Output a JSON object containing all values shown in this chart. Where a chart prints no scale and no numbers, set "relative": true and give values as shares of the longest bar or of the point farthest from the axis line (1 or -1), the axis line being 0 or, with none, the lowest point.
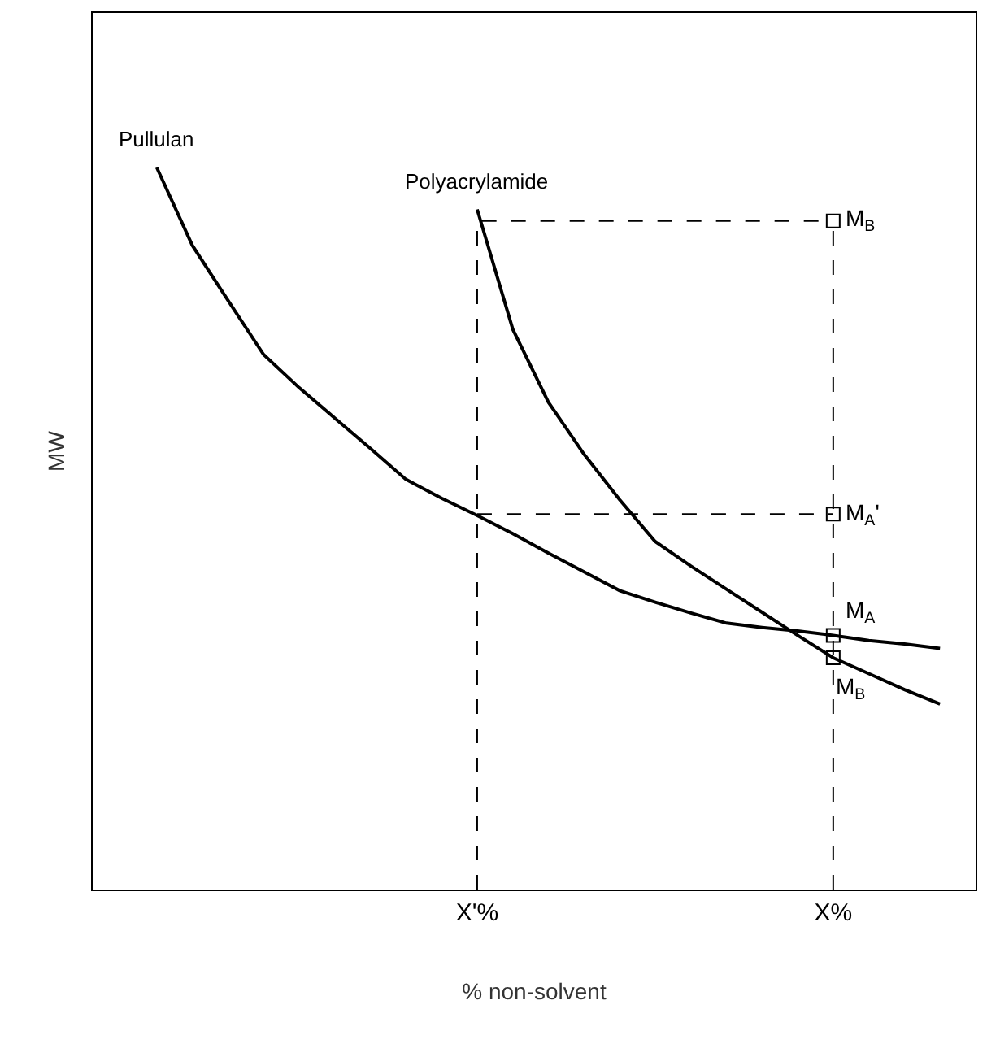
{
  "chart_data": {
    "type": "line",
    "relative": true,
    "xlabel": "% non-solvent",
    "ylabel": "MW",
    "categories": [
      null,
      null,
      null,
      null,
      null,
      null,
      null,
      null,
      null,
      null,
      null,
      "X'%",
      null,
      null,
      null,
      null,
      null,
      null,
      null,
      null,
      null,
      "X%",
      null,
      null,
      null
    ],
    "tick_labels": "x",
    "grid": false,
    "legend": false,
    "series": [
      {
        "name": "Pullulan",
        "color": "#000000",
        "line_style": "solid",
        "values": [
          null,
          null,
          1,
          0.892,
          0.816,
          0.741,
          0.695,
          0.653,
          0.611,
          0.568,
          0.542,
          0.518,
          0.493,
          0.466,
          0.44,
          0.414,
          0.398,
          0.383,
          0.369,
          0.363,
          0.358,
          0.352,
          0.345,
          0.34,
          0.334
        ]
      },
      {
        "name": "Polyacrylamide",
        "color": "#000000",
        "line_style": "solid",
        "values": [
          null,
          null,
          null,
          null,
          null,
          null,
          null,
          null,
          null,
          null,
          null,
          0.942,
          0.776,
          0.675,
          0.603,
          0.54,
          0.482,
          0.448,
          0.416,
          0.384,
          0.352,
          0.321,
          0.299,
          0.277,
          0.257
        ]
      },
      {
        "color": "#000000",
        "type": "line",
        "line_style": "dashed",
        "x": [
          "X'%",
          "X'%",
          "X%"
        ],
        "values": [
          0,
          0.926,
          0.926
        ]
      },
      {
        "color": "#000000",
        "type": "line",
        "line_style": "dashed",
        "x": [
          "X'%",
          "X%"
        ],
        "values": [
          0.52,
          0.52
        ]
      },
      {
        "color": "#000000",
        "type": "line",
        "line_style": "dashed",
        "x": [
          "X%",
          "X%"
        ],
        "values": [
          0,
          0.926
        ]
      },
      {
        "color": "#000000",
        "type": "scatter",
        "marker": "square",
        "x": [
          "X%",
          "X%",
          "X%",
          "X%"
        ],
        "values": [
          0.926,
          0.52,
          0.352,
          0.321
        ]
      }
    ],
    "annotations": [
      {
        "text": "M$_{B}$",
        "x": "X%",
        "y": 0.926
      },
      {
        "text": "M$_{A}$'",
        "x": "X%",
        "y": 0.52
      },
      {
        "text": "M$_{A}$",
        "x": "X%",
        "y": 0.352
      },
      {
        "text": "M$_{B}$",
        "x": "X%",
        "y": 0.321
      }
    ]
  }
}
